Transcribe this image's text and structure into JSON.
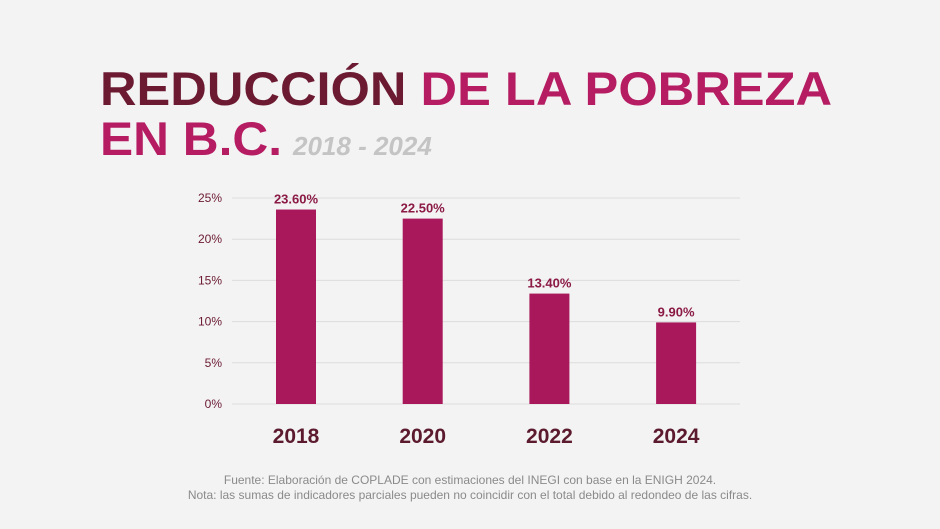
{
  "chart_data": {
    "type": "bar",
    "title": [
      "REDUCCIÓN",
      "DE LA POBREZA",
      "EN B.C."
    ],
    "subtitle": "2018 - 2024",
    "categories": [
      "2018",
      "2020",
      "2022",
      "2024"
    ],
    "values": [
      23.6,
      22.5,
      13.4,
      9.9
    ],
    "value_labels": [
      "23.60%",
      "22.50%",
      "13.40%",
      "9.90%"
    ],
    "color": "#a8185a",
    "ylim": [
      0,
      25
    ],
    "yticks": [
      {
        "value": 0,
        "label": "0%"
      },
      {
        "value": 5,
        "label": "5%"
      },
      {
        "value": 10,
        "label": "10%"
      },
      {
        "value": 15,
        "label": "15%"
      },
      {
        "value": 20,
        "label": "20%"
      },
      {
        "value": 25,
        "label": "25%"
      }
    ],
    "grid": true,
    "notes": [
      "Fuente: Elaboración de COPLADE con estimaciones del INEGI con base en la ENIGH 2024.",
      "Nota: las sumas de indicadores parciales pueden no coincidir con el total debido al redondeo de las cifras."
    ]
  }
}
